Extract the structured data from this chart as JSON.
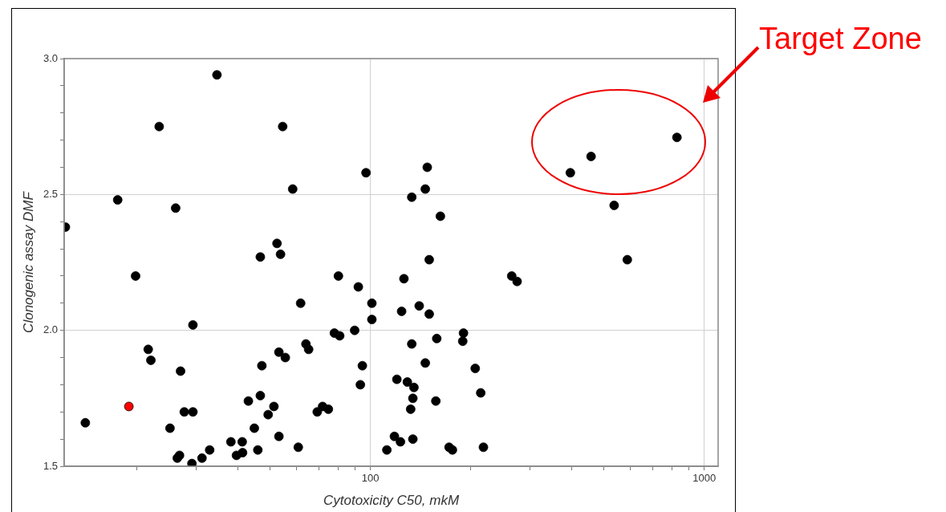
{
  "chart_data": {
    "type": "scatter",
    "xlabel": "Cytotoxicity C50, mkM",
    "ylabel": "Clonogenic assay DMF",
    "log": "x",
    "grid": true,
    "marker": "circle",
    "xlim": [
      12.1,
      1100
    ],
    "xticks": [
      {
        "value": 20,
        "label": null
      },
      {
        "value": 30,
        "label": null
      },
      {
        "value": 40,
        "label": null
      },
      {
        "value": 50,
        "label": null
      },
      {
        "value": 60,
        "label": null
      },
      {
        "value": 70,
        "label": null
      },
      {
        "value": 80,
        "label": null
      },
      {
        "value": 90,
        "label": null
      },
      100,
      {
        "value": 200,
        "label": null
      },
      {
        "value": 300,
        "label": null
      },
      {
        "value": 400,
        "label": null
      },
      {
        "value": 500,
        "label": null
      },
      {
        "value": 600,
        "label": null
      },
      {
        "value": 700,
        "label": null
      },
      {
        "value": 800,
        "label": null
      },
      {
        "value": 900,
        "label": null
      },
      1000
    ],
    "ylim": [
      1.5,
      3.0
    ],
    "yticks": [
      1.5,
      {
        "value": 1.6,
        "label": null
      },
      {
        "value": 1.7,
        "label": null
      },
      {
        "value": 1.8,
        "label": null
      },
      {
        "value": 1.9,
        "label": null
      },
      {
        "value": 2,
        "label": "2.0"
      },
      {
        "value": 2.1,
        "label": null
      },
      {
        "value": 2.2,
        "label": null
      },
      {
        "value": 2.3,
        "label": null
      },
      {
        "value": 2.4,
        "label": null
      },
      2.5,
      {
        "value": 2.6,
        "label": null
      },
      {
        "value": 2.7,
        "label": null
      },
      {
        "value": 2.8,
        "label": null
      },
      {
        "value": 2.9,
        "label": null
      },
      {
        "value": 3,
        "label": "3.0"
      }
    ],
    "x": [
      12.2,
      14.0,
      17.5,
      18.9,
      19.8,
      23.3,
      21.6,
      22.0,
      25.1,
      26.1,
      26.4,
      26.8,
      27.0,
      27.7,
      29.4,
      29.4,
      29.2,
      31.3,
      33.0,
      34.7,
      38.2,
      39.7,
      41.3,
      41.4,
      43.1,
      44.9,
      46.0,
      46.8,
      47.3,
      54.6,
      46.8,
      52.5,
      53.8,
      49.4,
      51.4,
      53.2,
      53.2,
      55.6,
      58.5,
      60.8,
      61.8,
      64.1,
      65.3,
      69.3,
      71.9,
      74.8,
      78.0,
      80.9,
      80.2,
      89.7,
      92.0,
      94.6,
      93.3,
      97.0,
      101,
      101,
      148,
      146,
      133,
      162,
      150,
      126,
      265,
      275,
      397,
      458,
      828,
      537,
      588,
      124,
      140,
      150,
      190,
      189,
      158,
      133,
      146,
      206,
      120,
      129,
      135,
      134,
      157,
      132,
      214,
      118,
      123,
      134,
      112,
      172,
      176,
      218
    ],
    "values": [
      2.38,
      1.66,
      2.48,
      1.72,
      2.2,
      2.75,
      1.93,
      1.89,
      1.64,
      2.45,
      1.53,
      1.54,
      1.85,
      1.7,
      2.02,
      1.7,
      1.51,
      1.53,
      1.56,
      2.94,
      1.59,
      1.54,
      1.59,
      1.55,
      1.74,
      1.64,
      1.56,
      1.76,
      1.87,
      2.75,
      2.27,
      2.32,
      2.28,
      1.69,
      1.72,
      1.61,
      1.92,
      1.9,
      2.52,
      1.57,
      2.1,
      1.95,
      1.93,
      1.7,
      1.72,
      1.71,
      1.99,
      1.98,
      2.2,
      2.0,
      2.16,
      1.87,
      1.8,
      2.58,
      2.1,
      2.04,
      2.6,
      2.52,
      2.49,
      2.42,
      2.26,
      2.19,
      2.2,
      2.18,
      2.58,
      2.64,
      2.71,
      2.46,
      2.26,
      2.07,
      2.09,
      2.06,
      1.99,
      1.96,
      1.97,
      1.95,
      1.88,
      1.86,
      1.82,
      1.81,
      1.79,
      1.75,
      1.74,
      1.71,
      1.77,
      1.61,
      1.59,
      1.6,
      1.56,
      1.57,
      1.56,
      1.57
    ],
    "colors": [
      "#000000",
      "#000000",
      "#000000",
      "#ff0000",
      "#000000",
      "#000000",
      "#000000",
      "#000000",
      "#000000",
      "#000000",
      "#000000",
      "#000000",
      "#000000",
      "#000000",
      "#000000",
      "#000000",
      "#000000",
      "#000000",
      "#000000",
      "#000000",
      "#000000",
      "#000000",
      "#000000",
      "#000000",
      "#000000",
      "#000000",
      "#000000",
      "#000000",
      "#000000",
      "#000000",
      "#000000",
      "#000000",
      "#000000",
      "#000000",
      "#000000",
      "#000000",
      "#000000",
      "#000000",
      "#000000",
      "#000000",
      "#000000",
      "#000000",
      "#000000",
      "#000000",
      "#000000",
      "#000000",
      "#000000",
      "#000000",
      "#000000",
      "#000000",
      "#000000",
      "#000000",
      "#000000",
      "#000000",
      "#000000",
      "#000000",
      "#000000",
      "#000000",
      "#000000",
      "#000000",
      "#000000",
      "#000000",
      "#000000",
      "#000000",
      "#000000",
      "#000000",
      "#000000",
      "#000000",
      "#000000",
      "#000000",
      "#000000",
      "#000000",
      "#000000",
      "#000000",
      "#000000",
      "#000000",
      "#000000",
      "#000000",
      "#000000",
      "#000000",
      "#000000",
      "#000000",
      "#000000",
      "#000000",
      "#000000",
      "#000000",
      "#000000",
      "#000000",
      "#000000",
      "#000000",
      "#000000",
      "#000000"
    ],
    "annotations": [
      "Target Zone"
    ]
  }
}
